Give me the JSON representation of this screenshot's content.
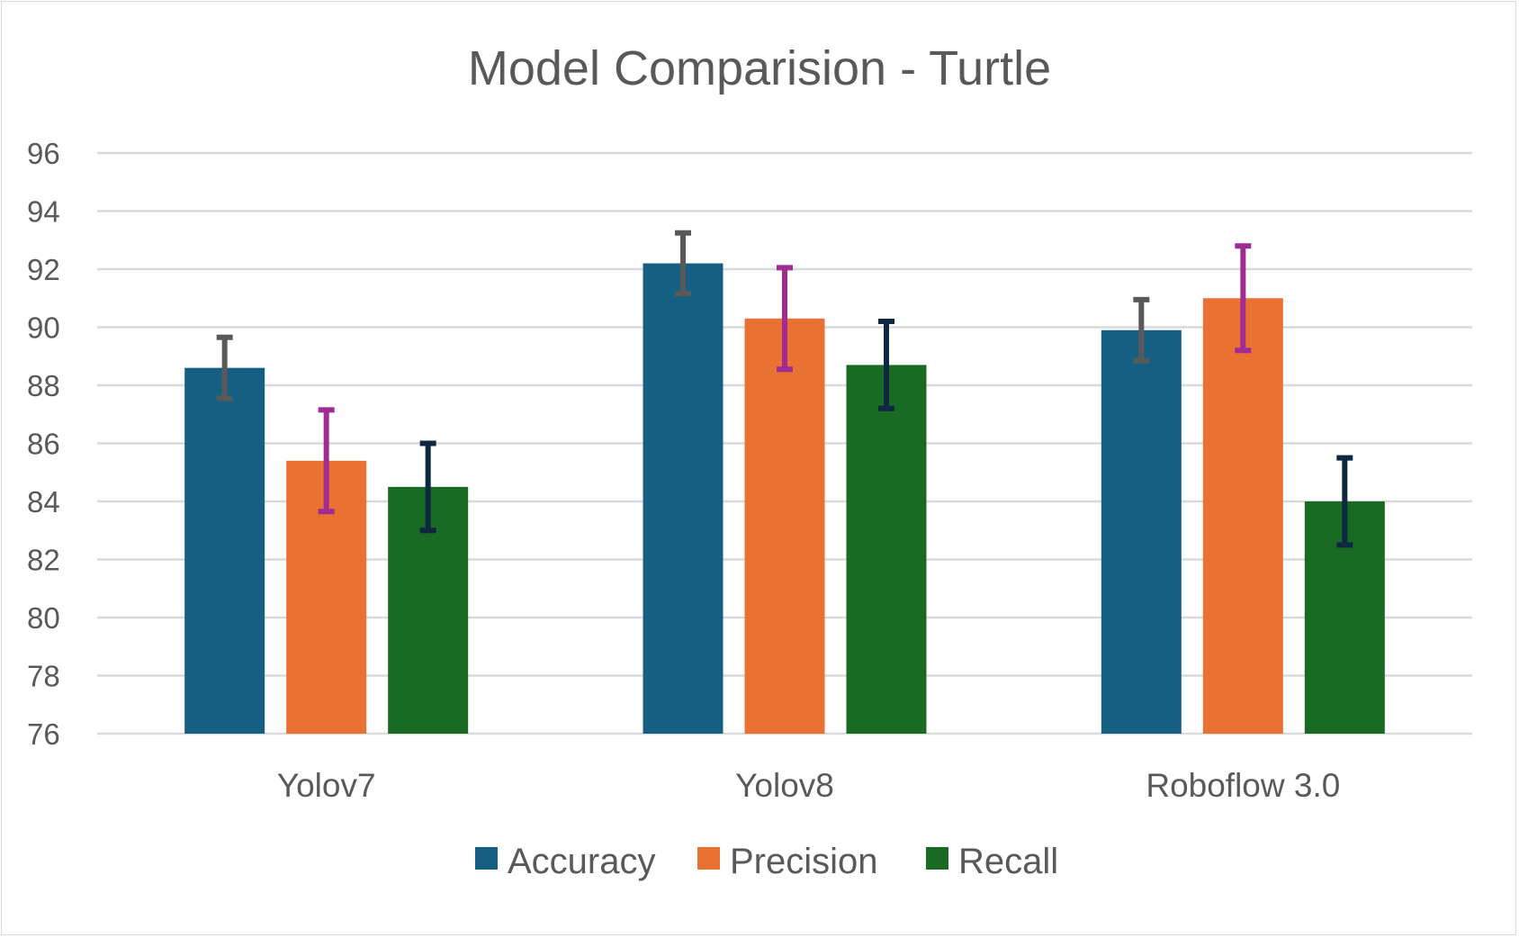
{
  "chart_data": {
    "type": "bar",
    "title": "Model Comparision - Turtle",
    "xlabel": "",
    "ylabel": "",
    "ylim": [
      76,
      96
    ],
    "yticks": [
      76,
      78,
      80,
      82,
      84,
      86,
      88,
      90,
      92,
      94,
      96
    ],
    "grid": true,
    "legend_position": "bottom",
    "categories": [
      "Yolov7",
      "Yolov8",
      "Roboflow 3.0"
    ],
    "series": [
      {
        "name": "Accuracy",
        "color": "#156082",
        "error_bar_color": "#595959",
        "values": [
          88.6,
          92.2,
          89.9
        ],
        "error": [
          1.05,
          1.05,
          1.05
        ]
      },
      {
        "name": "Precision",
        "color": "#E97132",
        "error_bar_color": "#A02B93",
        "values": [
          85.4,
          90.3,
          91.0
        ],
        "error": [
          1.75,
          1.75,
          1.8
        ]
      },
      {
        "name": "Recall",
        "color": "#196B24",
        "error_bar_color": "#0E2841",
        "values": [
          84.5,
          88.7,
          84.0
        ],
        "error": [
          1.5,
          1.5,
          1.5
        ]
      }
    ]
  }
}
